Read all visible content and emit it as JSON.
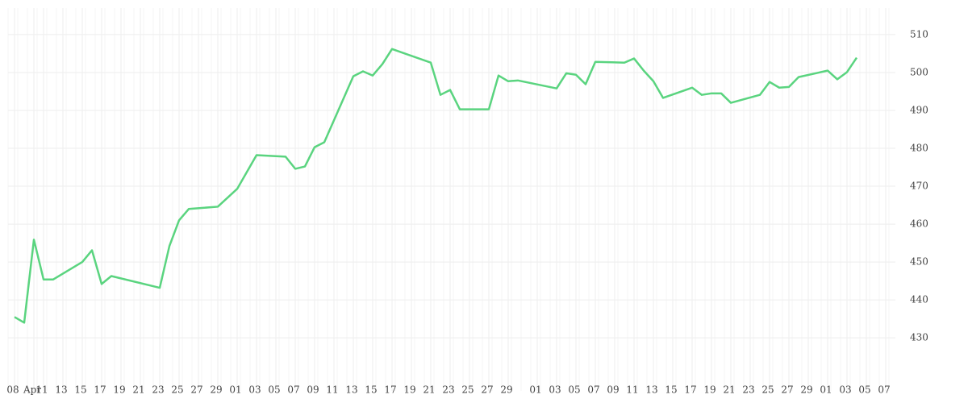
{
  "chart_data": {
    "type": "line",
    "x": [
      "Apr 08",
      "Apr 09",
      "Apr 10",
      "Apr 11",
      "Apr 12",
      "Apr 15",
      "Apr 16",
      "Apr 17",
      "Apr 18",
      "Apr 23",
      "Apr 24",
      "Apr 25",
      "Apr 26",
      "Apr 29",
      "May 01",
      "May 03",
      "May 06",
      "May 07",
      "May 08",
      "May 09",
      "May 10",
      "May 13",
      "May 14",
      "May 15",
      "May 16",
      "May 17",
      "May 21",
      "May 22",
      "May 23",
      "May 24",
      "May 27",
      "May 28",
      "May 29",
      "May 30",
      "Jun 03",
      "Jun 04",
      "Jun 05",
      "Jun 06",
      "Jun 07",
      "Jun 10",
      "Jun 11",
      "Jun 12",
      "Jun 13",
      "Jun 14",
      "Jun 17",
      "Jun 18",
      "Jun 19",
      "Jun 20",
      "Jun 21",
      "Jun 24",
      "Jun 25",
      "Jun 26",
      "Jun 27",
      "Jun 28",
      "Jul 01",
      "Jul 02",
      "Jul 03",
      "Jul 04"
    ],
    "series": [
      {
        "color": "#5ad47f",
        "values": [
          435.5,
          434.0,
          455.9,
          445.4,
          445.4,
          450.0,
          453.1,
          444.2,
          446.3,
          443.2,
          454.2,
          461.0,
          464.0,
          464.6,
          469.3,
          478.2,
          477.8,
          474.6,
          475.2,
          480.3,
          481.6,
          499.0,
          500.3,
          499.2,
          502.2,
          506.2,
          502.6,
          494.1,
          495.4,
          490.3,
          490.3,
          499.2,
          497.7,
          497.9,
          495.8,
          499.8,
          499.4,
          496.9,
          502.8,
          502.6,
          503.7,
          500.5,
          497.7,
          493.3,
          496.0,
          494.1,
          494.5,
          494.5,
          492.0,
          494.1,
          497.5,
          496.0,
          496.2,
          498.8,
          500.5,
          498.2,
          500.1,
          503.9
        ]
      }
    ],
    "xlim": [
      "Apr 08",
      "Jul 07"
    ],
    "xticks": [
      {
        "value": "Apr 08",
        "label": "08"
      },
      {
        "value": "Apr 10",
        "label": "Apr"
      },
      {
        "value": "Apr 11",
        "label": "11"
      },
      {
        "value": "Apr 13",
        "label": "13"
      },
      {
        "value": "Apr 15",
        "label": "15"
      },
      {
        "value": "Apr 17",
        "label": "17"
      },
      {
        "value": "Apr 19",
        "label": "19"
      },
      {
        "value": "Apr 21",
        "label": "21"
      },
      {
        "value": "Apr 23",
        "label": "23"
      },
      {
        "value": "Apr 25",
        "label": "25"
      },
      {
        "value": "Apr 27",
        "label": "27"
      },
      {
        "value": "Apr 29",
        "label": "29"
      },
      {
        "value": "May 01",
        "label": "01"
      },
      {
        "value": "May 03",
        "label": "03"
      },
      {
        "value": "May 05",
        "label": "05"
      },
      {
        "value": "May 07",
        "label": "07"
      },
      {
        "value": "May 09",
        "label": "09"
      },
      {
        "value": "May 11",
        "label": "11"
      },
      {
        "value": "May 13",
        "label": "13"
      },
      {
        "value": "May 15",
        "label": "15"
      },
      {
        "value": "May 17",
        "label": "17"
      },
      {
        "value": "May 19",
        "label": "19"
      },
      {
        "value": "May 21",
        "label": "21"
      },
      {
        "value": "May 23",
        "label": "23"
      },
      {
        "value": "May 25",
        "label": "25"
      },
      {
        "value": "May 27",
        "label": "27"
      },
      {
        "value": "May 29",
        "label": "29"
      },
      {
        "value": "Jun 01",
        "label": "01"
      },
      {
        "value": "Jun 03",
        "label": "03"
      },
      {
        "value": "Jun 05",
        "label": "05"
      },
      {
        "value": "Jun 07",
        "label": "07"
      },
      {
        "value": "Jun 09",
        "label": "09"
      },
      {
        "value": "Jun 11",
        "label": "11"
      },
      {
        "value": "Jun 13",
        "label": "13"
      },
      {
        "value": "Jun 15",
        "label": "15"
      },
      {
        "value": "Jun 17",
        "label": "17"
      },
      {
        "value": "Jun 19",
        "label": "19"
      },
      {
        "value": "Jun 21",
        "label": "21"
      },
      {
        "value": "Jun 23",
        "label": "23"
      },
      {
        "value": "Jun 25",
        "label": "25"
      },
      {
        "value": "Jun 27",
        "label": "27"
      },
      {
        "value": "Jun 29",
        "label": "29"
      },
      {
        "value": "Jul 01",
        "label": "01"
      },
      {
        "value": "Jul 03",
        "label": "03"
      },
      {
        "value": "Jul 05",
        "label": "05"
      },
      {
        "value": "Jul 07",
        "label": "07"
      }
    ],
    "ylim": [
      416,
      517
    ],
    "yticks": [
      430,
      440,
      450,
      460,
      470,
      480,
      490,
      500,
      510
    ],
    "grid": true
  }
}
